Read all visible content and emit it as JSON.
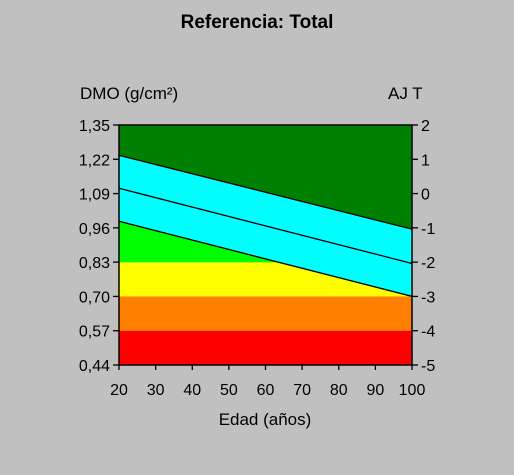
{
  "chart_data": {
    "type": "area",
    "title": "Referencia: Total",
    "ylabel": "DMO (g/cm²)",
    "y2label": "AJ T",
    "xlabel": "Edad (años)",
    "xlim": [
      20,
      100
    ],
    "ylim": [
      0.44,
      1.35
    ],
    "y2lim": [
      -5,
      2
    ],
    "x_ticks": [
      "20",
      "30",
      "40",
      "50",
      "60",
      "70",
      "80",
      "90",
      "100"
    ],
    "y_ticks": [
      "0,44",
      "0,57",
      "0,70",
      "0,83",
      "0,96",
      "1,09",
      "1,22",
      "1,35"
    ],
    "y2_ticks": [
      "-5",
      "-4",
      "-3",
      "-2",
      "-1",
      "0",
      "1",
      "2"
    ],
    "grid": false,
    "bands": [
      {
        "from": 0.44,
        "to": 0.57,
        "color": "#ff0000"
      },
      {
        "from": 0.57,
        "to": 0.7,
        "color": "#ff8000"
      },
      {
        "from": 0.7,
        "to": 0.83,
        "color": "#ffff00"
      },
      {
        "from": 0.83,
        "to": 1.35,
        "color": "#008000"
      }
    ],
    "series": [
      {
        "x": [
          20,
          100
        ],
        "y": [
          1.235,
          0.955
        ]
      },
      {
        "x": [
          20,
          100
        ],
        "y": [
          1.11,
          0.825
        ]
      },
      {
        "x": [
          20,
          100
        ],
        "y": [
          0.985,
          0.7
        ]
      }
    ],
    "colors": {
      "band_fill": "#00ffff",
      "light_green": "#00ff00",
      "background": "#c0c0c0"
    }
  }
}
